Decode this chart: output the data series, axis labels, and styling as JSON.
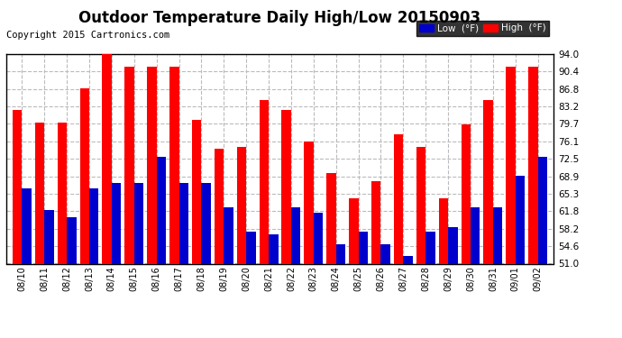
{
  "title": "Outdoor Temperature Daily High/Low 20150903",
  "copyright": "Copyright 2015 Cartronics.com",
  "dates": [
    "08/10",
    "08/11",
    "08/12",
    "08/13",
    "08/14",
    "08/15",
    "08/16",
    "08/17",
    "08/18",
    "08/19",
    "08/20",
    "08/21",
    "08/22",
    "08/23",
    "08/24",
    "08/25",
    "08/26",
    "08/27",
    "08/28",
    "08/29",
    "08/30",
    "08/31",
    "09/01",
    "09/02"
  ],
  "highs": [
    82.5,
    80.0,
    80.0,
    87.0,
    94.0,
    91.5,
    91.5,
    91.5,
    80.5,
    74.5,
    75.0,
    84.5,
    82.5,
    76.1,
    69.5,
    64.5,
    68.0,
    77.5,
    75.0,
    64.5,
    79.5,
    84.5,
    91.5,
    91.5
  ],
  "lows": [
    66.5,
    62.0,
    60.5,
    66.5,
    67.5,
    67.5,
    73.0,
    67.5,
    67.5,
    62.5,
    57.5,
    57.0,
    62.5,
    61.5,
    55.0,
    57.5,
    55.0,
    52.5,
    57.5,
    58.5,
    62.5,
    62.5,
    69.0,
    73.0
  ],
  "high_color": "#ff0000",
  "low_color": "#0000cc",
  "bg_color": "#ffffff",
  "grid_color": "#bbbbbb",
  "ymin": 51.0,
  "ymax": 94.0,
  "yticks": [
    51.0,
    54.6,
    58.2,
    61.8,
    65.3,
    68.9,
    72.5,
    76.1,
    79.7,
    83.2,
    86.8,
    90.4,
    94.0
  ],
  "title_fontsize": 12,
  "copyright_fontsize": 7.5,
  "legend_low_label": "Low  (°F)",
  "legend_high_label": "High  (°F)"
}
